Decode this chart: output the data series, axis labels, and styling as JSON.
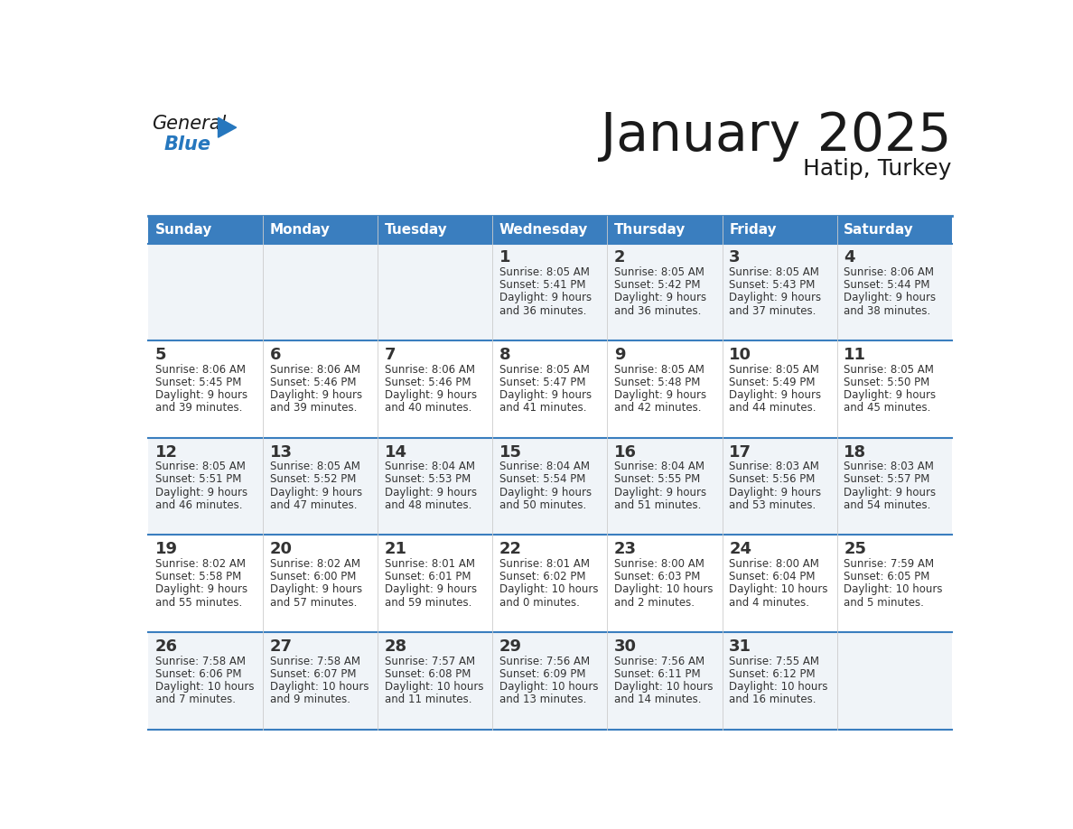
{
  "title": "January 2025",
  "subtitle": "Hatip, Turkey",
  "days_of_week": [
    "Sunday",
    "Monday",
    "Tuesday",
    "Wednesday",
    "Thursday",
    "Friday",
    "Saturday"
  ],
  "header_bg": "#3a7ebf",
  "header_text": "#ffffff",
  "row_bg_light": "#f0f4f8",
  "row_bg_white": "#ffffff",
  "cell_text": "#333333",
  "day_num_color": "#333333",
  "separator_color": "#3a7ebf",
  "grid_color": "#cccccc",
  "calendar_data": [
    [
      {
        "day": "",
        "sunrise": "",
        "sunset": "",
        "daylight": ""
      },
      {
        "day": "",
        "sunrise": "",
        "sunset": "",
        "daylight": ""
      },
      {
        "day": "",
        "sunrise": "",
        "sunset": "",
        "daylight": ""
      },
      {
        "day": "1",
        "sunrise": "8:05 AM",
        "sunset": "5:41 PM",
        "daylight": "9 hours and 36 minutes."
      },
      {
        "day": "2",
        "sunrise": "8:05 AM",
        "sunset": "5:42 PM",
        "daylight": "9 hours and 36 minutes."
      },
      {
        "day": "3",
        "sunrise": "8:05 AM",
        "sunset": "5:43 PM",
        "daylight": "9 hours and 37 minutes."
      },
      {
        "day": "4",
        "sunrise": "8:06 AM",
        "sunset": "5:44 PM",
        "daylight": "9 hours and 38 minutes."
      }
    ],
    [
      {
        "day": "5",
        "sunrise": "8:06 AM",
        "sunset": "5:45 PM",
        "daylight": "9 hours and 39 minutes."
      },
      {
        "day": "6",
        "sunrise": "8:06 AM",
        "sunset": "5:46 PM",
        "daylight": "9 hours and 39 minutes."
      },
      {
        "day": "7",
        "sunrise": "8:06 AM",
        "sunset": "5:46 PM",
        "daylight": "9 hours and 40 minutes."
      },
      {
        "day": "8",
        "sunrise": "8:05 AM",
        "sunset": "5:47 PM",
        "daylight": "9 hours and 41 minutes."
      },
      {
        "day": "9",
        "sunrise": "8:05 AM",
        "sunset": "5:48 PM",
        "daylight": "9 hours and 42 minutes."
      },
      {
        "day": "10",
        "sunrise": "8:05 AM",
        "sunset": "5:49 PM",
        "daylight": "9 hours and 44 minutes."
      },
      {
        "day": "11",
        "sunrise": "8:05 AM",
        "sunset": "5:50 PM",
        "daylight": "9 hours and 45 minutes."
      }
    ],
    [
      {
        "day": "12",
        "sunrise": "8:05 AM",
        "sunset": "5:51 PM",
        "daylight": "9 hours and 46 minutes."
      },
      {
        "day": "13",
        "sunrise": "8:05 AM",
        "sunset": "5:52 PM",
        "daylight": "9 hours and 47 minutes."
      },
      {
        "day": "14",
        "sunrise": "8:04 AM",
        "sunset": "5:53 PM",
        "daylight": "9 hours and 48 minutes."
      },
      {
        "day": "15",
        "sunrise": "8:04 AM",
        "sunset": "5:54 PM",
        "daylight": "9 hours and 50 minutes."
      },
      {
        "day": "16",
        "sunrise": "8:04 AM",
        "sunset": "5:55 PM",
        "daylight": "9 hours and 51 minutes."
      },
      {
        "day": "17",
        "sunrise": "8:03 AM",
        "sunset": "5:56 PM",
        "daylight": "9 hours and 53 minutes."
      },
      {
        "day": "18",
        "sunrise": "8:03 AM",
        "sunset": "5:57 PM",
        "daylight": "9 hours and 54 minutes."
      }
    ],
    [
      {
        "day": "19",
        "sunrise": "8:02 AM",
        "sunset": "5:58 PM",
        "daylight": "9 hours and 55 minutes."
      },
      {
        "day": "20",
        "sunrise": "8:02 AM",
        "sunset": "6:00 PM",
        "daylight": "9 hours and 57 minutes."
      },
      {
        "day": "21",
        "sunrise": "8:01 AM",
        "sunset": "6:01 PM",
        "daylight": "9 hours and 59 minutes."
      },
      {
        "day": "22",
        "sunrise": "8:01 AM",
        "sunset": "6:02 PM",
        "daylight": "10 hours and 0 minutes."
      },
      {
        "day": "23",
        "sunrise": "8:00 AM",
        "sunset": "6:03 PM",
        "daylight": "10 hours and 2 minutes."
      },
      {
        "day": "24",
        "sunrise": "8:00 AM",
        "sunset": "6:04 PM",
        "daylight": "10 hours and 4 minutes."
      },
      {
        "day": "25",
        "sunrise": "7:59 AM",
        "sunset": "6:05 PM",
        "daylight": "10 hours and 5 minutes."
      }
    ],
    [
      {
        "day": "26",
        "sunrise": "7:58 AM",
        "sunset": "6:06 PM",
        "daylight": "10 hours and 7 minutes."
      },
      {
        "day": "27",
        "sunrise": "7:58 AM",
        "sunset": "6:07 PM",
        "daylight": "10 hours and 9 minutes."
      },
      {
        "day": "28",
        "sunrise": "7:57 AM",
        "sunset": "6:08 PM",
        "daylight": "10 hours and 11 minutes."
      },
      {
        "day": "29",
        "sunrise": "7:56 AM",
        "sunset": "6:09 PM",
        "daylight": "10 hours and 13 minutes."
      },
      {
        "day": "30",
        "sunrise": "7:56 AM",
        "sunset": "6:11 PM",
        "daylight": "10 hours and 14 minutes."
      },
      {
        "day": "31",
        "sunrise": "7:55 AM",
        "sunset": "6:12 PM",
        "daylight": "10 hours and 16 minutes."
      },
      {
        "day": "",
        "sunrise": "",
        "sunset": "",
        "daylight": ""
      }
    ]
  ],
  "logo_color_general": "#1a1a1a",
  "logo_color_blue": "#2677be",
  "logo_triangle_color": "#2677be",
  "title_fontsize": 42,
  "subtitle_fontsize": 18,
  "header_fontsize": 11,
  "daynum_fontsize": 13,
  "info_fontsize": 8.5
}
